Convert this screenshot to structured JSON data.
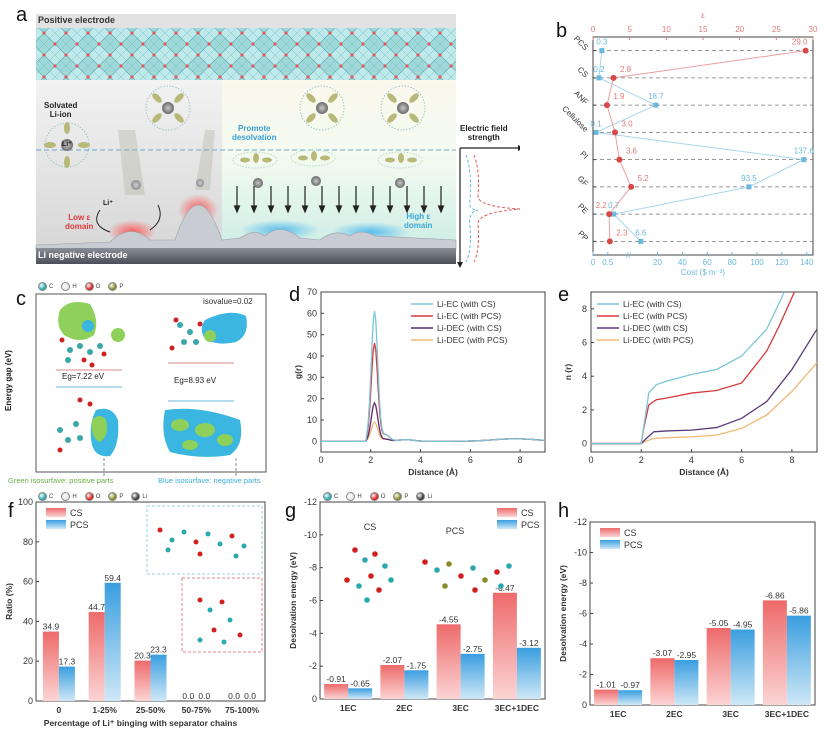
{
  "panels": {
    "a": {
      "label": "a",
      "top_label": "Positive electrode",
      "bottom_label": "Li negative electrode",
      "solvated_label": "Solvated\nLi-ion",
      "li_label": "Li⁺",
      "promote_label": "Promote\ndesolvation",
      "low_domain": "Low ε\ndomain",
      "high_domain": "High ε\ndomain",
      "field_label": "Electric field\nstrength",
      "colors": {
        "low": "#e03a3a",
        "high": "#3aa6d8",
        "promote": "#3a9fd8"
      }
    },
    "c": {
      "label": "c",
      "atoms": [
        "C",
        "H",
        "O",
        "P"
      ],
      "isovalue": "isovalue=0.02",
      "ylabel": "Energy gap (eV)",
      "gap1": "Eg=7.22 eV",
      "gap2": "Eg=8.93 eV",
      "caption_green": "Green isosurfave: positive parts",
      "caption_blue": "Blue isosurfave: negative parts"
    },
    "f_atoms": [
      "C",
      "H",
      "O",
      "P",
      "Li"
    ],
    "g_atoms": [
      "C",
      "H",
      "O",
      "P",
      "Li"
    ],
    "g_mol_labels": [
      "CS",
      "PCS"
    ]
  },
  "chart_data": [
    {
      "id": "b",
      "type": "scatter",
      "title": "",
      "categories": [
        "PCS",
        "CS",
        "ANF",
        "Cellulose",
        "PI",
        "GF",
        "PE",
        "PP"
      ],
      "series": [
        {
          "name": "ε",
          "axis": "top",
          "color": "#e05a5a",
          "values": [
            29.0,
            2.8,
            1.9,
            3.0,
            3.6,
            5.2,
            2.2,
            2.3
          ],
          "labels": [
            "29.0",
            "2.8",
            "1.9",
            "3.0",
            "3.6",
            "5.2",
            "2.2",
            "2.3"
          ]
        },
        {
          "name": "Cost ($ m⁻²)",
          "axis": "bottom",
          "color": "#6ab8dc",
          "values": [
            0.3,
            0.2,
            18.7,
            0.1,
            137.6,
            93.5,
            0.7,
            6.6
          ],
          "labels": [
            "0.3",
            "0.2",
            "18.7",
            "0.1",
            "137.6",
            "93.5",
            "0.7",
            "6.6"
          ]
        }
      ],
      "top_axis": {
        "label": "ε",
        "range": [
          0,
          30
        ],
        "ticks": [
          "0",
          "5",
          "10",
          "15",
          "20",
          "25",
          "30"
        ]
      },
      "bottom_axis": {
        "label": "Cost ($ m⁻²)",
        "broken": true,
        "ticks": [
          "0",
          "0.5",
          "20",
          "40",
          "60",
          "80",
          "100",
          "120",
          "140"
        ]
      },
      "grid": "dashed horizontal"
    },
    {
      "id": "d",
      "type": "line",
      "xlabel": "Distance (Å)",
      "ylabel": "g(r)",
      "xlim": [
        0,
        9
      ],
      "ylim": [
        -5,
        70
      ],
      "xticks": [
        "0",
        "2",
        "4",
        "6",
        "8"
      ],
      "yticks": [
        "0",
        "10",
        "20",
        "30",
        "40",
        "50",
        "60",
        "70"
      ],
      "legend": "top-right",
      "series": [
        {
          "name": "Li-EC (with CS)",
          "color": "#7cc6d8",
          "peak": 61
        },
        {
          "name": "Li-EC (with PCS)",
          "color": "#d83a3a",
          "peak": 46
        },
        {
          "name": "Li-DEC (with CS)",
          "color": "#5a2a6a",
          "peak": 18
        },
        {
          "name": "Li-DEC (with PCS)",
          "color": "#f0b878",
          "peak": 9
        }
      ]
    },
    {
      "id": "e",
      "type": "line",
      "xlabel": "Distance (Å)",
      "ylabel": "n (r)",
      "xlim": [
        0,
        9
      ],
      "ylim": [
        -0.5,
        9
      ],
      "xticks": [
        "0",
        "2",
        "4",
        "6",
        "8"
      ],
      "yticks": [
        "0",
        "2",
        "4",
        "6",
        "8"
      ],
      "legend": "top-left",
      "series": [
        {
          "name": "Li-EC (with CS)",
          "color": "#7cc6d8",
          "points": [
            [
              0,
              0
            ],
            [
              2,
              0
            ],
            [
              2.1,
              1
            ],
            [
              2.3,
              3.0
            ],
            [
              2.6,
              3.5
            ],
            [
              3,
              3.7
            ],
            [
              4,
              4.1
            ],
            [
              5,
              4.4
            ],
            [
              6,
              5.2
            ],
            [
              7,
              6.8
            ],
            [
              7.7,
              9
            ]
          ]
        },
        {
          "name": "Li-EC (with PCS)",
          "color": "#d83a3a",
          "points": [
            [
              0,
              0
            ],
            [
              2,
              0
            ],
            [
              2.1,
              0.9
            ],
            [
              2.3,
              2.3
            ],
            [
              2.6,
              2.6
            ],
            [
              3,
              2.7
            ],
            [
              4,
              3.0
            ],
            [
              5,
              3.15
            ],
            [
              6,
              3.6
            ],
            [
              7,
              5.5
            ],
            [
              7.5,
              7
            ],
            [
              8.1,
              9
            ]
          ]
        },
        {
          "name": "Li-DEC (with CS)",
          "color": "#5a3a7a",
          "points": [
            [
              0,
              0
            ],
            [
              2,
              0
            ],
            [
              2.2,
              0.3
            ],
            [
              2.5,
              0.7
            ],
            [
              3,
              0.75
            ],
            [
              4,
              0.8
            ],
            [
              5,
              0.95
            ],
            [
              6,
              1.5
            ],
            [
              7,
              2.5
            ],
            [
              8,
              4.4
            ],
            [
              9,
              6.8
            ]
          ]
        },
        {
          "name": "Li-DEC (with PCS)",
          "color": "#f0b878",
          "points": [
            [
              0,
              0
            ],
            [
              2,
              0
            ],
            [
              2.2,
              0.15
            ],
            [
              2.5,
              0.3
            ],
            [
              3,
              0.35
            ],
            [
              4,
              0.4
            ],
            [
              5,
              0.5
            ],
            [
              6,
              0.9
            ],
            [
              7,
              1.7
            ],
            [
              8,
              3.1
            ],
            [
              9,
              4.8
            ]
          ]
        }
      ]
    },
    {
      "id": "f",
      "type": "bar",
      "xlabel": "Percentage of Li⁺ binging with separator chains",
      "ylabel": "Ratio (%)",
      "ylim": [
        0,
        100
      ],
      "yticks": [
        "0",
        "20",
        "40",
        "60",
        "80",
        "100"
      ],
      "categories": [
        "0",
        "1-25%",
        "25-50%",
        "50-75%",
        "75-100%"
      ],
      "legend": "top-left",
      "series": [
        {
          "name": "CS",
          "color": "#ec6a6a",
          "values": [
            34.9,
            44.7,
            20.3,
            0.0,
            0.0
          ],
          "labels": [
            "34.9",
            "44.7",
            "20.3",
            "0.0",
            "0.0"
          ]
        },
        {
          "name": "PCS",
          "color": "#3a9ee0",
          "values": [
            17.3,
            59.4,
            23.3,
            0.0,
            0.0
          ],
          "labels": [
            "17.3",
            "59.4",
            "23.3",
            "0.0",
            "0.0"
          ]
        }
      ]
    },
    {
      "id": "g",
      "type": "bar",
      "xlabel": "",
      "ylabel": "Desolvation energy (eV)",
      "ylim": [
        0,
        -12
      ],
      "yticks": [
        "0",
        "-2",
        "-4",
        "-6",
        "-8",
        "-10",
        "-12"
      ],
      "categories": [
        "1EC",
        "2EC",
        "3EC",
        "3EC+1DEC"
      ],
      "legend": "top-right",
      "series": [
        {
          "name": "CS",
          "color": "#ec6a6a",
          "values": [
            -0.91,
            -2.07,
            -4.55,
            -6.47
          ],
          "labels": [
            "-0.91",
            "-2.07",
            "-4.55",
            "-6.47"
          ]
        },
        {
          "name": "PCS",
          "color": "#3a9ee0",
          "values": [
            -0.65,
            -1.75,
            -2.75,
            -3.12
          ],
          "labels": [
            "-0.65",
            "-1.75",
            "-2.75",
            "-3.12"
          ]
        }
      ]
    },
    {
      "id": "h",
      "type": "bar",
      "xlabel": "",
      "ylabel": "Desolvation energy (eV)",
      "ylim": [
        0,
        -12
      ],
      "yticks": [
        "0",
        "-2",
        "-4",
        "-6",
        "-8",
        "-10",
        "-12"
      ],
      "categories": [
        "1EC",
        "2EC",
        "3EC",
        "3EC+1DEC"
      ],
      "legend": "top-left",
      "series": [
        {
          "name": "CS",
          "color": "#ec6a6a",
          "values": [
            -1.01,
            -3.07,
            -5.05,
            -6.86
          ],
          "labels": [
            "-1.01",
            "-3.07",
            "-5.05",
            "-6.86"
          ]
        },
        {
          "name": "PCS",
          "color": "#3a9ee0",
          "values": [
            -0.97,
            -2.95,
            -4.95,
            -5.86
          ],
          "labels": [
            "-0.97",
            "-2.95",
            "-4.95",
            "-5.86"
          ]
        }
      ]
    }
  ]
}
